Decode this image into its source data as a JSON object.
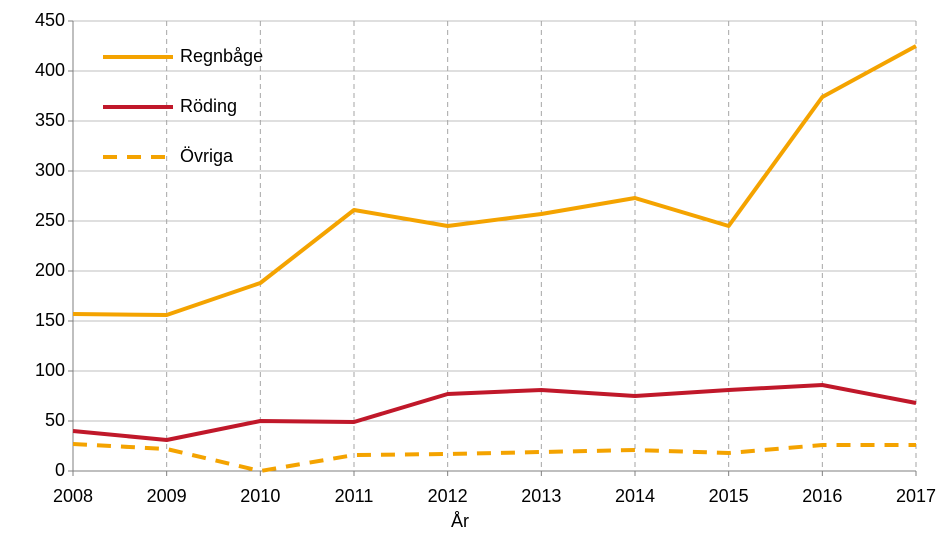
{
  "chart_data": {
    "type": "line",
    "x_label": "År",
    "x": [
      2008,
      2009,
      2010,
      2011,
      2012,
      2013,
      2014,
      2015,
      2016,
      2017
    ],
    "xlim": [
      2008,
      2017
    ],
    "xticks": [
      2008,
      2009,
      2010,
      2011,
      2012,
      2013,
      2014,
      2015,
      2016,
      2017
    ],
    "ylim": [
      0,
      450
    ],
    "yticks": [
      0,
      50,
      100,
      150,
      200,
      250,
      300,
      350,
      400,
      450
    ],
    "grid": true,
    "legend": "upper left",
    "series": [
      {
        "name": "Regnbåge",
        "color": "#f4a300",
        "style": "solid",
        "values": [
          157,
          156,
          188,
          261,
          245,
          257,
          273,
          245,
          374,
          425
        ]
      },
      {
        "name": "Röding",
        "color": "#c0182a",
        "style": "solid",
        "values": [
          40,
          31,
          50,
          49,
          77,
          81,
          75,
          81,
          86,
          68
        ]
      },
      {
        "name": "Övriga",
        "color": "#f4a300",
        "style": "dashed",
        "values": [
          27,
          22,
          0,
          16,
          17,
          19,
          21,
          18,
          26,
          26
        ]
      }
    ]
  }
}
